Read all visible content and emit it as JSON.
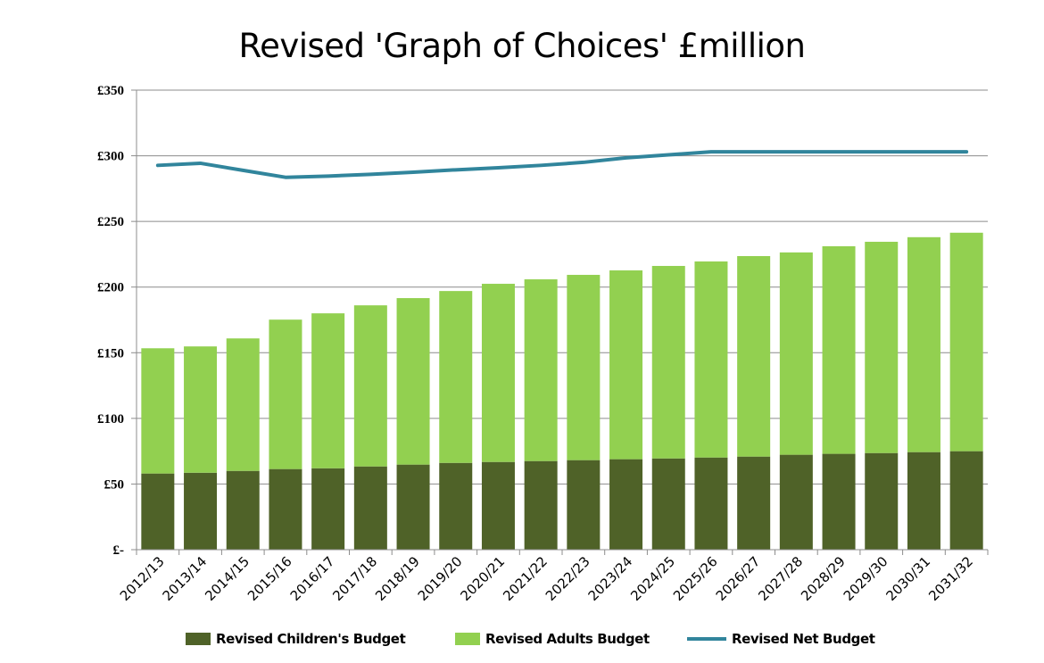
{
  "chart_data": {
    "type": "bar",
    "stacked": true,
    "title": "Revised 'Graph of Choices' £million",
    "xlabel": "",
    "ylabel": "",
    "ylim": [
      0,
      350
    ],
    "yticks": [
      0,
      50,
      100,
      150,
      200,
      250,
      300,
      350
    ],
    "ytick_labels": [
      "£-",
      "£50",
      "£100",
      "£150",
      "£200",
      "£250",
      "£300",
      "£350"
    ],
    "grid": true,
    "legend": "bottom",
    "categories": [
      "2012/13",
      "2013/14",
      "2014/15",
      "2015/16",
      "2016/17",
      "2017/18",
      "2018/19",
      "2019/20",
      "2020/21",
      "2021/22",
      "2022/23",
      "2023/24",
      "2024/25",
      "2025/26",
      "2026/27",
      "2027/28",
      "2028/29",
      "2029/30",
      "2030/31",
      "2031/32"
    ],
    "series": [
      {
        "name": "Revised Children's Budget",
        "kind": "bar",
        "color": "#4f6228",
        "values": [
          58.0,
          58.6,
          60.0,
          61.4,
          62.0,
          63.4,
          64.8,
          66.1,
          66.8,
          67.5,
          68.2,
          68.9,
          69.5,
          70.2,
          70.9,
          72.3,
          73.0,
          73.6,
          74.3,
          75.0
        ]
      },
      {
        "name": "Revised Adults Budget",
        "kind": "bar",
        "color": "#92d050",
        "values": [
          95.4,
          96.2,
          100.9,
          113.8,
          118.0,
          122.7,
          126.8,
          130.9,
          135.7,
          138.4,
          141.1,
          143.8,
          146.6,
          149.3,
          152.7,
          154.1,
          158.1,
          160.9,
          163.7,
          166.4
        ]
      },
      {
        "name": "Revised Net Budget",
        "kind": "line",
        "color": "#31859c",
        "values": [
          292.7,
          294.3,
          288.9,
          283.6,
          284.5,
          285.9,
          287.5,
          289.3,
          290.9,
          292.7,
          295.0,
          298.4,
          300.7,
          303.0,
          303.0,
          303.0,
          303.0,
          303.0,
          303.0,
          303.0
        ]
      }
    ]
  }
}
